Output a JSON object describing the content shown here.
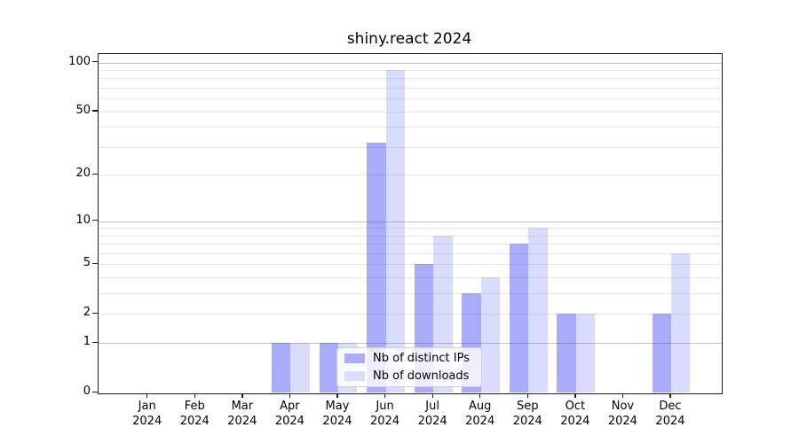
{
  "chart_data": {
    "type": "bar",
    "title": "shiny.react 2024",
    "months": [
      "Jan",
      "Feb",
      "Mar",
      "Apr",
      "May",
      "Jun",
      "Jul",
      "Aug",
      "Sep",
      "Oct",
      "Nov",
      "Dec"
    ],
    "year": "2024",
    "categories": [
      "Jan 2024",
      "Feb 2024",
      "Mar 2024",
      "Apr 2024",
      "May 2024",
      "Jun 2024",
      "Jul 2024",
      "Aug 2024",
      "Sep 2024",
      "Oct 2024",
      "Nov 2024",
      "Dec 2024"
    ],
    "series": [
      {
        "name": "Nb of distinct IPs",
        "color": "rgba(48,58,242,0.42)",
        "legend_color": "#a8acf9",
        "values": [
          0,
          0,
          0,
          1,
          1,
          32,
          5,
          3,
          7,
          2,
          0,
          2
        ]
      },
      {
        "name": "Nb of downloads",
        "color": "rgba(48,58,242,0.175)",
        "legend_color": "#dbdcfc",
        "values": [
          0,
          0,
          0,
          1,
          1,
          90,
          8,
          4,
          9,
          2,
          0,
          6
        ]
      }
    ],
    "y_axis": {
      "scale": "log1p",
      "tick_labels": [
        100,
        50,
        20,
        10,
        5,
        2,
        1,
        0
      ],
      "major_gridlines": [
        1,
        10,
        100
      ],
      "minor_gridlines": [
        2,
        3,
        4,
        5,
        6,
        7,
        8,
        9,
        20,
        30,
        40,
        50,
        60,
        70,
        80,
        90
      ],
      "ylim": [
        0,
        113
      ]
    },
    "grid": true,
    "legend_position": "inside-bottom-center",
    "colors": {
      "axis": "#1c1c1c",
      "grid_minor": "#e7e7e7",
      "grid_major": "#c3c3c3"
    }
  }
}
